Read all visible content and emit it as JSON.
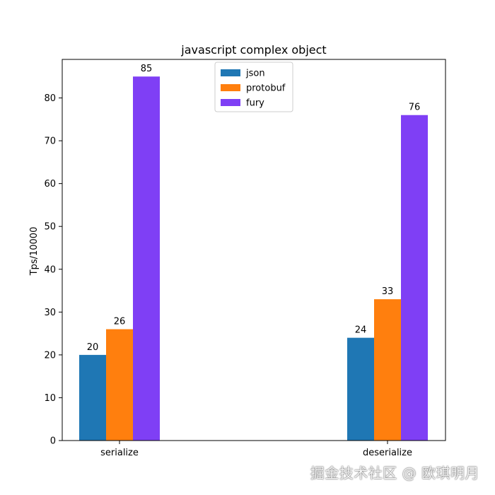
{
  "chart_data": {
    "type": "bar",
    "title": "javascript complex object",
    "xlabel": "",
    "ylabel": "Tps/10000",
    "categories": [
      "serialize",
      "deserialize"
    ],
    "series": [
      {
        "name": "json",
        "values": [
          20,
          24
        ],
        "color": "#1f77b4"
      },
      {
        "name": "protobuf",
        "values": [
          26,
          33
        ],
        "color": "#ff7f0e"
      },
      {
        "name": "fury",
        "values": [
          85,
          76
        ],
        "color": "#7f3ff5"
      }
    ],
    "ylim": [
      0,
      89
    ],
    "yticks": [
      0,
      10,
      20,
      30,
      40,
      50,
      60,
      70,
      80
    ],
    "grid": false,
    "legend": "top-center"
  },
  "watermark": {
    "text": "掘金技术社区 @ 欧琪明月"
  }
}
